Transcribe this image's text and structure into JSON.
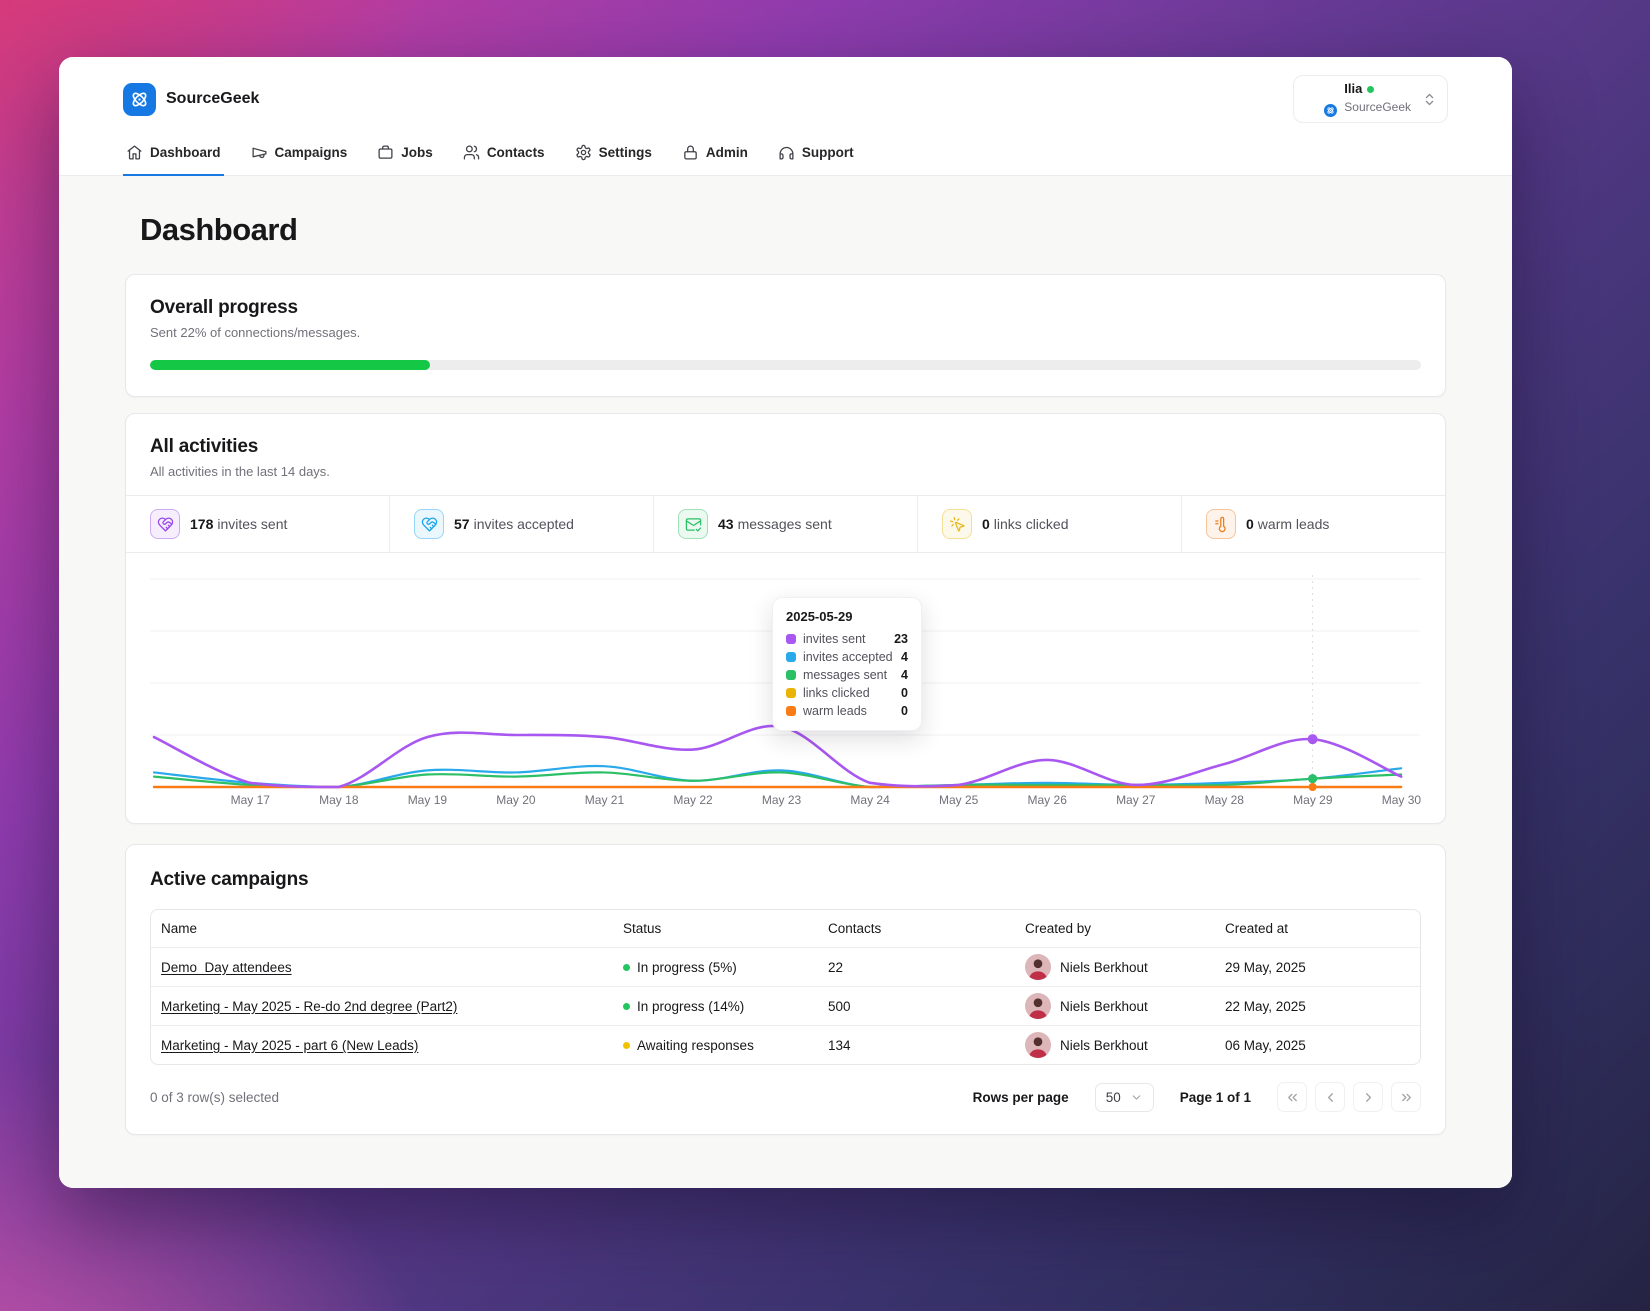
{
  "app": {
    "name": "SourceGeek",
    "accent_color": "#1779e3"
  },
  "user": {
    "name": "Ilia",
    "org": "SourceGeek",
    "status_color": "#22c55e"
  },
  "nav": {
    "items": [
      {
        "label": "Dashboard",
        "active": true
      },
      {
        "label": "Campaigns",
        "active": false
      },
      {
        "label": "Jobs",
        "active": false
      },
      {
        "label": "Contacts",
        "active": false
      },
      {
        "label": "Settings",
        "active": false
      },
      {
        "label": "Admin",
        "active": false
      },
      {
        "label": "Support",
        "active": false
      }
    ]
  },
  "page": {
    "title": "Dashboard"
  },
  "overall_progress": {
    "title": "Overall progress",
    "subtitle": "Sent 22% of connections/messages.",
    "percent": 22,
    "bar_color": "#14c845"
  },
  "activities": {
    "title": "All activities",
    "subtitle": "All activities in the last 14 days.",
    "stats": [
      {
        "value": "178",
        "label": "invites sent",
        "color": "#9747e8"
      },
      {
        "value": "57",
        "label": "invites accepted",
        "color": "#1aa3ea"
      },
      {
        "value": "43",
        "label": "messages sent",
        "color": "#2bbf66"
      },
      {
        "value": "0",
        "label": "links clicked",
        "color": "#e8b71a"
      },
      {
        "value": "0",
        "label": "warm leads",
        "color": "#ef7d1a"
      }
    ],
    "tooltip": {
      "date": "2025-05-29",
      "rows": [
        {
          "label": "invites sent",
          "value": "23",
          "color": "#a857f0"
        },
        {
          "label": "invites accepted",
          "value": "4",
          "color": "#29a9ea"
        },
        {
          "label": "messages sent",
          "value": "4",
          "color": "#2bbf66"
        },
        {
          "label": "links clicked",
          "value": "0",
          "color": "#eab308"
        },
        {
          "label": "warm leads",
          "value": "0",
          "color": "#f97b16"
        }
      ]
    }
  },
  "chart_data": {
    "type": "line",
    "title": "All activities (last 14 days)",
    "categories": [
      "May 17",
      "May 18",
      "May 19",
      "May 20",
      "May 21",
      "May 22",
      "May 23",
      "May 24",
      "May 25",
      "May 26",
      "May 27",
      "May 28",
      "May 29",
      "May 30"
    ],
    "ylim": [
      0,
      100
    ],
    "grid": "horizontal",
    "legend_position": "none",
    "hover_index": 12,
    "hover_date": "2025-05-29",
    "series": [
      {
        "name": "invites sent",
        "color": "#a857f0",
        "edge_in": 24,
        "values": [
          2,
          0,
          24,
          25,
          24,
          18,
          29,
          2,
          1,
          13,
          1,
          11,
          23,
          5
        ]
      },
      {
        "name": "invites accepted",
        "color": "#29a9ea",
        "edge_in": 7,
        "values": [
          2,
          0,
          8,
          7,
          10,
          3,
          8,
          0,
          1,
          2,
          1,
          2,
          4,
          9
        ]
      },
      {
        "name": "messages sent",
        "color": "#2bbf66",
        "edge_in": 5,
        "values": [
          1,
          0,
          6,
          5,
          7,
          3,
          7,
          0,
          1,
          1,
          1,
          1,
          4,
          6
        ]
      },
      {
        "name": "links clicked",
        "color": "#eab308",
        "edge_in": 0,
        "values": [
          0,
          0,
          0,
          0,
          0,
          0,
          0,
          0,
          0,
          0,
          0,
          0,
          0,
          0
        ]
      },
      {
        "name": "warm leads",
        "color": "#f97b16",
        "edge_in": 0,
        "values": [
          0,
          0,
          0,
          0,
          0,
          0,
          0,
          0,
          0,
          0,
          0,
          0,
          0,
          0
        ]
      }
    ]
  },
  "campaigns": {
    "title": "Active campaigns",
    "columns": [
      "Name",
      "Status",
      "Contacts",
      "Created by",
      "Created at"
    ],
    "rows": [
      {
        "name": "Demo_Day attendees",
        "status": "In progress (5%)",
        "status_color": "#22c55e",
        "contacts": "22",
        "created_by": "Niels Berkhout",
        "created_at": "29 May, 2025"
      },
      {
        "name": "Marketing - May 2025 - Re-do 2nd degree (Part2)",
        "status": "In progress (14%)",
        "status_color": "#22c55e",
        "contacts": "500",
        "created_by": "Niels Berkhout",
        "created_at": "22 May, 2025"
      },
      {
        "name": "Marketing - May 2025 - part 6 (New Leads)",
        "status": "Awaiting responses",
        "status_color": "#f2c200",
        "contacts": "134",
        "created_by": "Niels Berkhout",
        "created_at": "06 May, 2025"
      }
    ],
    "footer": {
      "selected": "0 of 3 row(s) selected",
      "rows_per_page_label": "Rows per page",
      "rows_per_page_value": "50",
      "page_label": "Page 1 of 1"
    }
  }
}
